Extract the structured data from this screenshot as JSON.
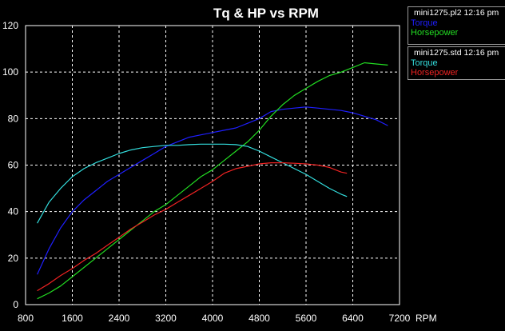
{
  "chart_data": {
    "type": "line",
    "title": "Tq & HP vs RPM",
    "xlabel": "RPM",
    "ylabel": "",
    "xlim": [
      800,
      7200
    ],
    "ylim": [
      0,
      120
    ],
    "x_ticks": [
      800,
      1600,
      2400,
      3200,
      4000,
      4800,
      5600,
      6400,
      7200
    ],
    "y_ticks": [
      0,
      20,
      40,
      60,
      80,
      100,
      120
    ],
    "x_tick_labels": [
      "800",
      "1600",
      "2400",
      "3200",
      "4000",
      "4800",
      "5600",
      "6400",
      "7200"
    ],
    "y_tick_labels": [
      "0",
      "20",
      "40",
      "60",
      "80",
      "100",
      "120"
    ],
    "grid": true,
    "legend_placement": "right",
    "runs": [
      {
        "header": "mini1275.pl2 12:16 pm",
        "series": [
          {
            "name": "Torque",
            "color": "#1f1fff",
            "x": [
              1000,
              1200,
              1400,
              1600,
              1800,
              2000,
              2200,
              2400,
              2600,
              2800,
              3000,
              3200,
              3400,
              3600,
              3800,
              4000,
              4200,
              4400,
              4600,
              4800,
              5000,
              5200,
              5400,
              5600,
              5800,
              6000,
              6200,
              6400,
              6600,
              6800,
              7000
            ],
            "y": [
              13,
              24,
              33,
              40,
              45,
              49,
              53,
              56,
              59,
              62,
              65,
              68,
              70,
              72,
              73,
              74,
              75,
              76,
              78,
              80,
              83,
              84,
              84.5,
              85,
              84.5,
              84,
              83.5,
              82.5,
              81,
              79.5,
              77
            ]
          },
          {
            "name": "Horsepower",
            "color": "#22dd22",
            "x": [
              1000,
              1200,
              1400,
              1600,
              1800,
              2000,
              2200,
              2400,
              2600,
              2800,
              3000,
              3200,
              3400,
              3600,
              3800,
              4000,
              4200,
              4400,
              4600,
              4800,
              5000,
              5200,
              5400,
              5600,
              5800,
              6000,
              6200,
              6400,
              6600,
              6800,
              7000
            ],
            "y": [
              2.5,
              5,
              8,
              12,
              16,
              20,
              24,
              28,
              32,
              36,
              40,
              43,
              47,
              51,
              55,
              58,
              62,
              66,
              70,
              75,
              81,
              86,
              90,
              93,
              96,
              98.5,
              100,
              102,
              104,
              103.5,
              103
            ]
          }
        ]
      },
      {
        "header": "mini1275.std 12:16 pm",
        "series": [
          {
            "name": "Torque",
            "color": "#33dddd",
            "x": [
              1000,
              1200,
              1400,
              1600,
              1800,
              2000,
              2200,
              2400,
              2600,
              2800,
              3000,
              3200,
              3400,
              3600,
              3800,
              4000,
              4200,
              4400,
              4600,
              4800,
              5000,
              5200,
              5400,
              5600,
              5800,
              6000,
              6200,
              6300
            ],
            "y": [
              35,
              44,
              50,
              55,
              58.5,
              61,
              63,
              65,
              66.5,
              67.5,
              68,
              68.5,
              68.5,
              68.8,
              69,
              69,
              69,
              68.8,
              68,
              66,
              63.5,
              61,
              58.5,
              56,
              53,
              50,
              47.5,
              46.5
            ]
          },
          {
            "name": "Horsepower",
            "color": "#ee2222",
            "x": [
              1000,
              1200,
              1400,
              1600,
              1800,
              2000,
              2200,
              2400,
              2600,
              2800,
              3000,
              3200,
              3400,
              3600,
              3800,
              4000,
              4200,
              4400,
              4600,
              4800,
              5000,
              5200,
              5400,
              5600,
              5800,
              6000,
              6200,
              6300
            ],
            "y": [
              6,
              9,
              12.5,
              15.5,
              19,
              22,
              25.5,
              29,
              32.5,
              35.5,
              38.5,
              41,
              44,
              47,
              50,
              53,
              56.5,
              58.5,
              59.5,
              60.5,
              61,
              61,
              60.8,
              60.5,
              60,
              59,
              57,
              56.5
            ]
          }
        ]
      }
    ]
  }
}
